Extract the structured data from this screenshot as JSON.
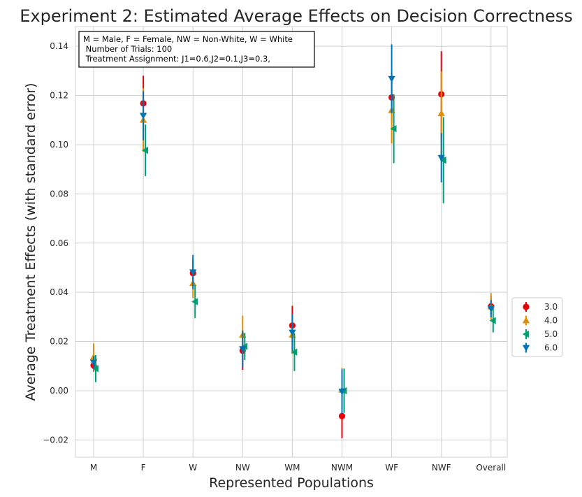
{
  "chart_data": {
    "type": "scatter",
    "title": "Experiment 2: Estimated Average Effects on Decision Correctness",
    "xlabel": "Represented Populations",
    "ylabel": "Average Treatment Effects (with standard error)",
    "categories": [
      "M",
      "F",
      "W",
      "NW",
      "WM",
      "NWM",
      "WF",
      "NWF",
      "Overall"
    ],
    "ylim": [
      -0.027,
      0.148
    ],
    "yticks": [
      -0.02,
      0.0,
      0.02,
      0.04,
      0.06,
      0.08,
      0.1,
      0.12,
      0.14
    ],
    "ytick_labels": [
      "−0.02",
      "0.00",
      "0.02",
      "0.04",
      "0.06",
      "0.08",
      "0.10",
      "0.12",
      "0.14"
    ],
    "grid": true,
    "legend_position": "right",
    "annotation": [
      "M = Male, F = Female, NW = Non-White, W = White",
      " Number of Trials: 100",
      " Treatment Assignment: J1=0.6,J2=0.1,J3=0.3,"
    ],
    "series": [
      {
        "name": "3.0",
        "color": "#e8000b",
        "marker": "circle",
        "offset": 0,
        "values": [
          0.0103,
          0.1168,
          0.0478,
          0.0163,
          0.0265,
          -0.0103,
          0.1192,
          0.1205,
          0.0343
        ],
        "errors": [
          0.0025,
          0.0112,
          0.0055,
          0.0078,
          0.008,
          0.009,
          0.01,
          0.0175,
          0.0042
        ]
      },
      {
        "name": "4.0",
        "color": "#de8f05",
        "marker": "triangle-up",
        "offset": 0,
        "values": [
          0.0137,
          0.11,
          0.0437,
          0.0227,
          0.0227,
          0.0003,
          0.114,
          0.1127,
          0.0342
        ],
        "errors": [
          0.0055,
          0.013,
          0.006,
          0.0078,
          0.0078,
          0.009,
          0.0135,
          0.017,
          0.0055
        ]
      },
      {
        "name": "5.0",
        "color": "#029e73",
        "marker": "triangle-left",
        "offset": 3,
        "values": [
          0.009,
          0.0977,
          0.0362,
          0.018,
          0.0157,
          0.0,
          0.1065,
          0.0937,
          0.0285
        ],
        "errors": [
          0.0055,
          0.0105,
          0.0067,
          0.0055,
          0.0077,
          0.009,
          0.014,
          0.0175,
          0.0048
        ]
      },
      {
        "name": "6.0",
        "color": "#0173b2",
        "marker": "triangle-down",
        "offset": 0,
        "values": [
          0.0115,
          0.1118,
          0.0482,
          0.017,
          0.0237,
          -0.0003,
          0.1268,
          0.0947,
          0.0333
        ],
        "errors": [
          0.0025,
          0.01,
          0.007,
          0.0075,
          0.0075,
          0.009,
          0.014,
          0.01,
          0.0035
        ]
      }
    ]
  }
}
